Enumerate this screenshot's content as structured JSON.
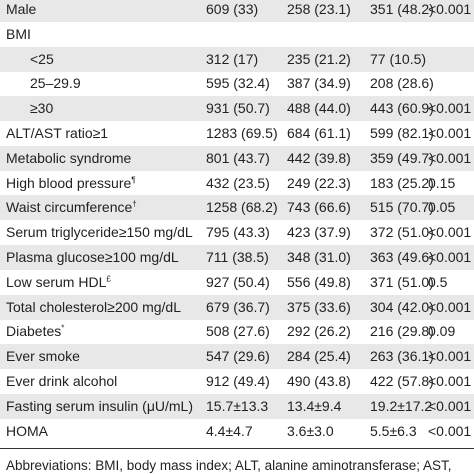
{
  "table": {
    "rows": [
      {
        "label": "Male",
        "cells": [
          "609 (33)",
          "258 (23.1)",
          "351 (48.2)",
          "<0.001"
        ]
      },
      {
        "label": "BMI",
        "subrows": [
          {
            "label": "<25",
            "cells": [
              "312 (17)",
              "235 (21.2)",
              "77 (10.5)"
            ]
          },
          {
            "label": "25–29.9",
            "cells": [
              "595 (32.4)",
              "387 (34.9)",
              "208 (28.6)"
            ]
          },
          {
            "label": "≥30",
            "cells": [
              "931 (50.7)",
              "488 (44.0)",
              "443 (60.9)",
              "<0.001"
            ]
          }
        ]
      },
      {
        "label": "ALT/AST ratio≥1",
        "cells": [
          "1283 (69.5)",
          "684 (61.1)",
          "599 (82.1)",
          "<0.001"
        ]
      },
      {
        "label": "Metabolic syndrome",
        "cells": [
          "801 (43.7)",
          "442 (39.8)",
          "359 (49.7)",
          "<0.001"
        ]
      },
      {
        "label": "High blood pressure",
        "sup": "¶",
        "cells": [
          "432 (23.5)",
          "249 (22.3)",
          "183 (25.2)",
          "0.15"
        ]
      },
      {
        "label": "Waist circumference",
        "sup": "†",
        "cells": [
          "1258 (68.2)",
          "743 (66.6)",
          "515 (70.7)",
          "0.05"
        ]
      },
      {
        "label": "Serum triglyceride≥150 mg/dL",
        "cells": [
          "795 (43.3)",
          "423 (37.9)",
          "372 (51.0)",
          "<0.001"
        ]
      },
      {
        "label": "Plasma glucose≥100 mg/dL",
        "cells": [
          "711 (38.5)",
          "348 (31.0)",
          "363 (49.6)",
          "<0.001"
        ]
      },
      {
        "label": "Low serum HDL",
        "sup": "£",
        "cells": [
          "927 (50.4)",
          "556 (49.8)",
          "371 (51.0)",
          "0.5"
        ]
      },
      {
        "label": "Total cholesterol≥200 mg/dL",
        "cells": [
          "679 (36.7)",
          "375 (33.6)",
          "304 (42.0)",
          "<0.001"
        ]
      },
      {
        "label": "Diabetes",
        "sup": "*",
        "cells": [
          "508 (27.6)",
          "292 (26.2)",
          "216 (29.8)",
          "0.09"
        ]
      },
      {
        "label": "Ever smoke",
        "cells": [
          "547 (29.6)",
          "284 (25.4)",
          "263 (36.1)",
          "<0.001"
        ]
      },
      {
        "label": "Ever drink alcohol",
        "cells": [
          "912 (49.4)",
          "490 (43.8)",
          "422 (57.8)",
          "<0.001"
        ]
      },
      {
        "label": "Fasting serum insulin (μU/mL)",
        "cells": [
          "15.7±13.3",
          "13.4±9.4",
          "19.2±17.2",
          "<0.001"
        ]
      },
      {
        "label": "HOMA",
        "cells": [
          "4.4±4.7",
          "3.6±3.0",
          "5.5±6.3",
          "<0.001"
        ]
      }
    ],
    "footnote": "Abbreviations: BMI, body mass index; ALT, alanine aminotransferase; AST,"
  }
}
